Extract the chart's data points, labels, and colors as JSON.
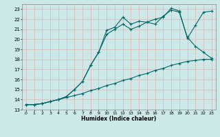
{
  "bg_color": "#cce8e8",
  "grid_color": "#ddbcbc",
  "line_color": "#006666",
  "xlabel": "Humidex (Indice chaleur)",
  "xlim": [
    -0.5,
    23.5
  ],
  "ylim": [
    13.0,
    23.5
  ],
  "yticks": [
    13,
    14,
    15,
    16,
    17,
    18,
    19,
    20,
    21,
    22,
    23
  ],
  "xticks": [
    0,
    1,
    2,
    3,
    4,
    5,
    6,
    7,
    8,
    9,
    10,
    11,
    12,
    13,
    14,
    15,
    16,
    17,
    18,
    19,
    20,
    21,
    22,
    23
  ],
  "line1_x": [
    0,
    1,
    2,
    3,
    4,
    5,
    6,
    7,
    8,
    9,
    10,
    11,
    12,
    13,
    14,
    15,
    16,
    17,
    18,
    19,
    20,
    21,
    22,
    23
  ],
  "line1_y": [
    13.5,
    13.5,
    13.6,
    13.8,
    14.0,
    14.2,
    14.4,
    14.6,
    14.9,
    15.1,
    15.4,
    15.6,
    15.9,
    16.1,
    16.4,
    16.6,
    16.9,
    17.1,
    17.4,
    17.6,
    17.8,
    17.9,
    18.0,
    18.0
  ],
  "line2_x": [
    0,
    1,
    2,
    3,
    4,
    5,
    6,
    7,
    8,
    9,
    10,
    11,
    12,
    13,
    14,
    15,
    16,
    17,
    18,
    19,
    20,
    21,
    22,
    23
  ],
  "line2_y": [
    13.5,
    13.5,
    13.6,
    13.8,
    14.0,
    14.3,
    15.0,
    15.8,
    17.4,
    18.7,
    20.9,
    21.2,
    22.2,
    21.5,
    21.8,
    21.7,
    22.0,
    22.2,
    23.1,
    22.8,
    20.1,
    21.4,
    22.7,
    22.8
  ],
  "line3_x": [
    0,
    1,
    2,
    3,
    4,
    5,
    6,
    7,
    8,
    9,
    10,
    11,
    12,
    13,
    14,
    15,
    16,
    17,
    18,
    19,
    20,
    21,
    22,
    23
  ],
  "line3_y": [
    13.5,
    13.5,
    13.6,
    13.8,
    14.0,
    14.3,
    15.0,
    15.8,
    17.4,
    18.7,
    20.5,
    21.0,
    21.5,
    21.0,
    21.3,
    21.7,
    21.5,
    22.3,
    22.9,
    22.7,
    20.2,
    19.3,
    18.7,
    18.1
  ]
}
